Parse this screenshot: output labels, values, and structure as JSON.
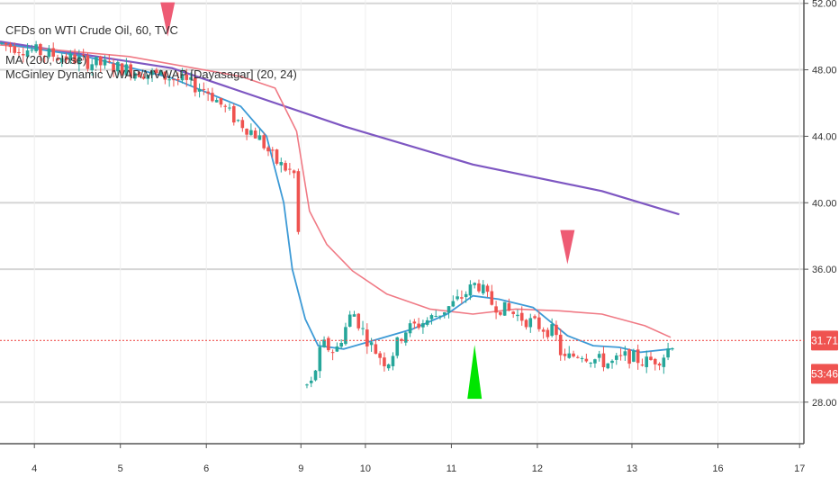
{
  "chart_data": {
    "type": "line",
    "legend": {
      "symbol_line": "CFDs on WTI Crude Oil, 60, TVC",
      "ma_line": "MA (200, close)",
      "indicator_line": "McGinley Dynamic VWAP/MVWAP [Dayasagar] (20, 24)"
    },
    "x_ticks": [
      {
        "label": "4",
        "x": 0.4
      },
      {
        "label": "5",
        "x": 1.4
      },
      {
        "label": "6",
        "x": 2.4
      },
      {
        "label": "9",
        "x": 3.5
      },
      {
        "label": "10",
        "x": 4.25
      },
      {
        "label": "11",
        "x": 5.25
      },
      {
        "label": "12",
        "x": 6.25
      },
      {
        "label": "13",
        "x": 7.35
      },
      {
        "label": "16",
        "x": 8.35
      },
      {
        "label": "17",
        "x": 9.3
      }
    ],
    "x_range": [
      0,
      9.35
    ],
    "y_ticks": [
      "52.00",
      "48.00",
      "44.00",
      "40.00",
      "36.00",
      "28.00"
    ],
    "y_range": [
      25.5,
      52.2
    ],
    "grid": true,
    "last_price": {
      "label": "31.71",
      "value": 31.71,
      "color": "#ef5350"
    },
    "countdown": {
      "label": "53:46"
    },
    "colors": {
      "ma": "#7e57c2",
      "mvwap": "#f07a85",
      "mcginley": "#3d9ad6",
      "up": "#26a69a",
      "down": "#ef5350",
      "sell_marker": "#ee5b74",
      "buy_marker": "#00e600",
      "grid": "#d6d6d6",
      "axis": "#555555"
    },
    "series": [
      {
        "id": "ma",
        "name": "MA (200, close)",
        "x": [
          0,
          2,
          4,
          5.5,
          7,
          7.9
        ],
        "y": [
          49.7,
          48.1,
          44.6,
          42.3,
          40.7,
          39.3
        ]
      },
      {
        "id": "mvwap",
        "x": [
          0,
          1.5,
          2.8,
          3.2,
          3.45,
          3.6,
          3.8,
          4.1,
          4.5,
          5,
          5.5,
          6,
          6.5,
          7,
          7.5,
          7.8
        ],
        "y": [
          49.5,
          48.8,
          47.6,
          46.9,
          44.3,
          39.5,
          37.5,
          35.9,
          34.5,
          33.6,
          33.3,
          33.6,
          33.5,
          33.3,
          32.6,
          31.9
        ]
      },
      {
        "id": "mcginley",
        "x": [
          0,
          1,
          2,
          2.8,
          3.1,
          3.3,
          3.4,
          3.55,
          3.7,
          4,
          4.4,
          4.8,
          5.2,
          5.5,
          5.8,
          6.2,
          6.6,
          6.9,
          7.2,
          7.45,
          7.8
        ],
        "y": [
          49.6,
          48.8,
          47.5,
          45.8,
          44.0,
          40.0,
          36.0,
          33.0,
          31.4,
          31.2,
          31.8,
          32.4,
          33.3,
          34.4,
          34.2,
          33.7,
          32.0,
          31.4,
          31.3,
          31.0,
          31.2
        ]
      }
    ],
    "price": {
      "x": [
        0,
        0.5,
        1,
        1.5,
        2,
        2.4,
        2.7,
        3.0,
        3.2,
        3.45,
        3.52,
        3.6,
        3.75,
        3.9,
        4.1,
        4.3,
        4.5,
        4.7,
        5.0,
        5.3,
        5.55,
        5.7,
        5.9,
        6.1,
        6.3,
        6.45,
        6.55,
        6.75,
        6.9,
        7.1,
        7.3,
        7.5,
        7.7,
        7.85
      ],
      "y": [
        49.6,
        49.0,
        48.5,
        48.0,
        47.5,
        46.8,
        45.2,
        44.0,
        42.5,
        41.6,
        29.5,
        28.7,
        31.5,
        31.0,
        33.5,
        31.5,
        30.3,
        32.3,
        33.0,
        34.0,
        35.2,
        34.0,
        33.5,
        33.0,
        32.5,
        32.2,
        30.5,
        31.0,
        30.6,
        30.3,
        30.8,
        30.4,
        30.7,
        31.8
      ]
    },
    "markers": [
      {
        "type": "sell",
        "x": 1.95,
        "y": 50.0
      },
      {
        "type": "sell",
        "x": 6.6,
        "y": 36.3
      },
      {
        "type": "buy",
        "x": 5.52,
        "y": 28.2
      }
    ],
    "gaps": [
      {
        "x0": 3.47,
        "x1": 3.53
      }
    ]
  }
}
